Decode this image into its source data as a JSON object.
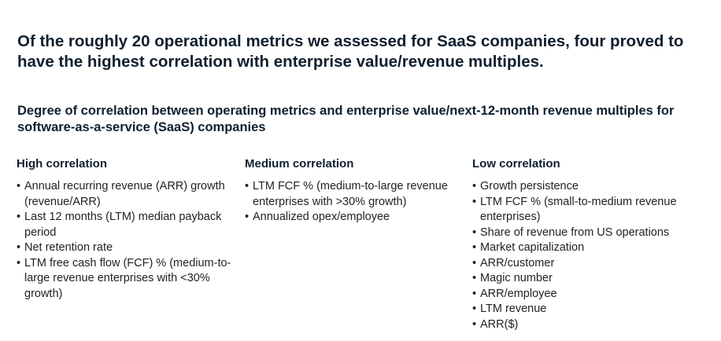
{
  "headline": "Of the roughly 20 operational metrics we assessed for SaaS companies, four proved to have the highest correlation with enterprise value/revenue multiples.",
  "subtitle": "Degree of correlation between operating metrics and enterprise value/next-12-month revenue multiples for software-as-a-service (SaaS) companies",
  "columns": {
    "high": {
      "heading": "High correlation",
      "items": [
        "Annual recurring revenue (ARR) growth (revenue/ARR)",
        "Last 12 months (LTM) median payback period",
        "Net retention rate",
        "LTM free cash flow (FCF) % (medium-to-large revenue enterprises with <30% growth)"
      ]
    },
    "medium": {
      "heading": "Medium correlation",
      "items": [
        "LTM FCF % (medium-to-large revenue enterprises with >30% growth)",
        "Annualized opex/employee"
      ]
    },
    "low": {
      "heading": "Low correlation",
      "items": [
        "Growth persistence",
        "LTM FCF % (small-to-medium revenue enterprises)",
        "Share of revenue from US operations",
        "Market capitalization",
        "ARR/customer",
        "Magic number",
        "ARR/employee",
        "LTM revenue",
        "ARR($)"
      ]
    }
  }
}
